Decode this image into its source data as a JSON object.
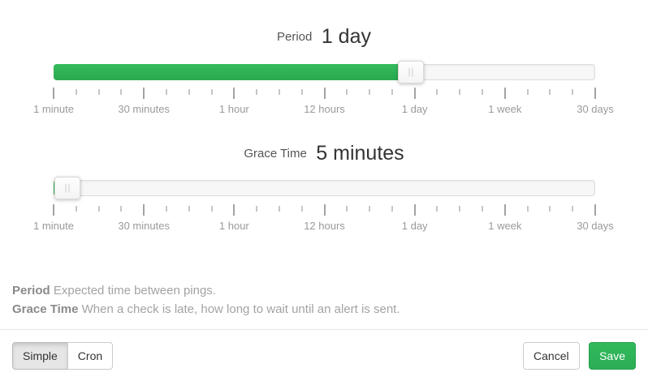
{
  "period": {
    "label": "Period",
    "value": "1 day",
    "fill_percent": 66,
    "handle_percent": 66
  },
  "grace": {
    "label": "Grace Time",
    "value": "5 minutes",
    "fill_percent": 2.5,
    "handle_percent": 2.5
  },
  "scale": {
    "tick_labels": [
      "1 minute",
      "30 minutes",
      "1 hour",
      "12 hours",
      "1 day",
      "1 week",
      "30 days"
    ],
    "minors_between": 3
  },
  "help": {
    "period_term": "Period",
    "period_desc": "Expected time between pings.",
    "grace_term": "Grace Time",
    "grace_desc": "When a check is late, how long to wait until an alert is sent."
  },
  "footer": {
    "simple_label": "Simple",
    "cron_label": "Cron",
    "cancel_label": "Cancel",
    "save_label": "Save"
  },
  "colors": {
    "accent_green": "#2eb558",
    "track_bg": "#f7f7f7",
    "tick_gray": "#a3a3a3"
  }
}
